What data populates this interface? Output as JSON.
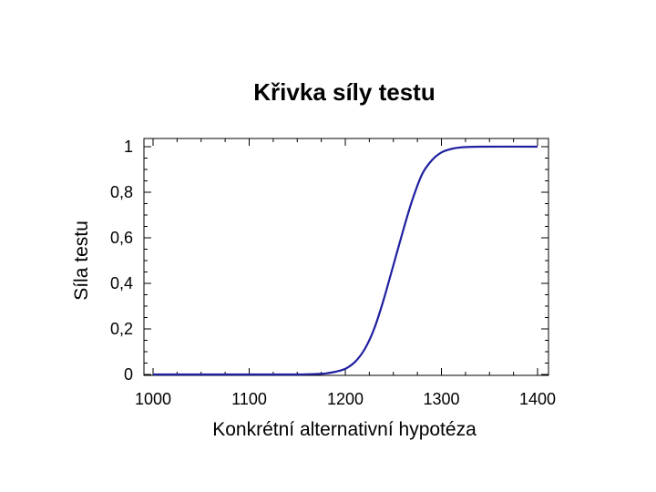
{
  "chart_data": {
    "type": "line",
    "title": "Křivka síly testu",
    "xlabel": "Konkrétní alternativní hypotéza",
    "ylabel": "Síla testu",
    "xlim": [
      1000,
      1400
    ],
    "ylim": [
      0,
      1
    ],
    "x_ticks": [
      1000,
      1100,
      1200,
      1300,
      1400
    ],
    "y_ticks": [
      0,
      0.2,
      0.4,
      0.6,
      0.8,
      1
    ],
    "y_tick_labels": [
      "0",
      "0,2",
      "0,4",
      "0,6",
      "0,8",
      "1"
    ],
    "x_tick_labels": [
      "1000",
      "1100",
      "1200",
      "1300",
      "1400"
    ],
    "grid": false,
    "series": [
      {
        "color": "#1f1fa0",
        "points": [
          {
            "x": 1000,
            "y": 0
          },
          {
            "x": 1100,
            "y": 0
          },
          {
            "x": 1150,
            "y": 0
          },
          {
            "x": 1170,
            "y": 0.002
          },
          {
            "x": 1180,
            "y": 0.005
          },
          {
            "x": 1190,
            "y": 0.012
          },
          {
            "x": 1200,
            "y": 0.025
          },
          {
            "x": 1210,
            "y": 0.055
          },
          {
            "x": 1220,
            "y": 0.11
          },
          {
            "x": 1230,
            "y": 0.2
          },
          {
            "x": 1240,
            "y": 0.33
          },
          {
            "x": 1250,
            "y": 0.48
          },
          {
            "x": 1260,
            "y": 0.63
          },
          {
            "x": 1270,
            "y": 0.77
          },
          {
            "x": 1280,
            "y": 0.88
          },
          {
            "x": 1290,
            "y": 0.94
          },
          {
            "x": 1300,
            "y": 0.975
          },
          {
            "x": 1310,
            "y": 0.99
          },
          {
            "x": 1320,
            "y": 0.997
          },
          {
            "x": 1340,
            "y": 1
          },
          {
            "x": 1400,
            "y": 1
          }
        ]
      }
    ]
  }
}
